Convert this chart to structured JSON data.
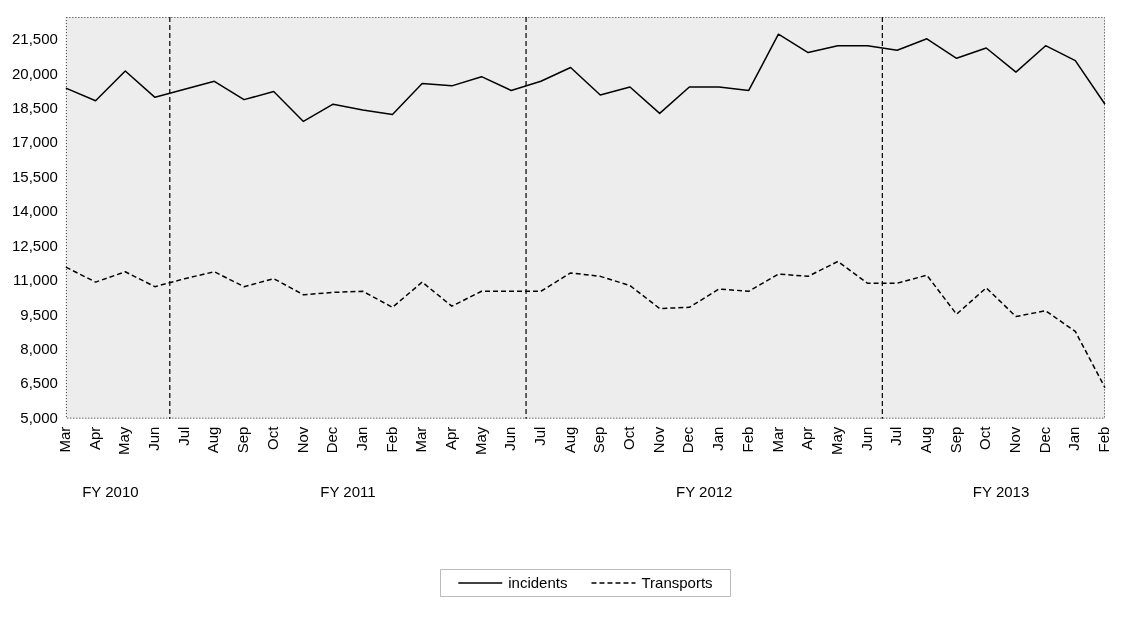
{
  "chart_data": {
    "type": "line",
    "categories": [
      "Mar",
      "Apr",
      "May",
      "Jun",
      "Jul",
      "Aug",
      "Sep",
      "Oct",
      "Nov",
      "Dec",
      "Jan",
      "Feb",
      "Mar",
      "Apr",
      "May",
      "Jun",
      "Jul",
      "Aug",
      "Sep",
      "Oct",
      "Nov",
      "Dec",
      "Jan",
      "Feb",
      "Mar",
      "Apr",
      "May",
      "Jun",
      "Jul",
      "Aug",
      "Sep",
      "Oct",
      "Nov",
      "Dec",
      "Jan",
      "Feb"
    ],
    "series": [
      {
        "name": "incidents",
        "color": "#000000",
        "line_style": "solid",
        "values": [
          19400,
          18850,
          20150,
          19000,
          19350,
          19700,
          18900,
          19250,
          17950,
          18700,
          18450,
          18250,
          19600,
          19500,
          19900,
          19300,
          19700,
          20300,
          19100,
          19450,
          18300,
          19450,
          19450,
          19300,
          21750,
          20950,
          21250,
          21250,
          21050,
          21550,
          20700,
          21150,
          20100,
          21250,
          20600,
          18700
        ]
      },
      {
        "name": "Transports",
        "color": "#000000",
        "line_style": "dashed",
        "values": [
          11600,
          10950,
          11400,
          10750,
          11100,
          11400,
          10750,
          11100,
          10400,
          10500,
          10550,
          9850,
          10950,
          9900,
          10550,
          10550,
          10550,
          11350,
          11200,
          10800,
          9800,
          9850,
          10650,
          10550,
          11300,
          11200,
          11850,
          10900,
          10900,
          11250,
          9550,
          10700,
          9450,
          9700,
          8800,
          6350
        ]
      }
    ],
    "ylim": [
      5000,
      22500
    ],
    "yticks": [
      {
        "value": 5000,
        "label": "5,000"
      },
      {
        "value": 6500,
        "label": "6,500"
      },
      {
        "value": 8000,
        "label": "8,000"
      },
      {
        "value": 9500,
        "label": "9,500"
      },
      {
        "value": 11000,
        "label": "11,000"
      },
      {
        "value": 12500,
        "label": "12,500"
      },
      {
        "value": 14000,
        "label": "14,000"
      },
      {
        "value": 15500,
        "label": "15,500"
      },
      {
        "value": 17000,
        "label": "17,000"
      },
      {
        "value": 18500,
        "label": "18,500"
      },
      {
        "value": 20000,
        "label": "20,000"
      },
      {
        "value": 21500,
        "label": "21,500"
      }
    ],
    "grid": false,
    "legend": "bottom",
    "marker": "none",
    "annotations": [
      "FY 2010",
      "FY 2011",
      "FY 2012",
      "FY 2013"
    ]
  }
}
